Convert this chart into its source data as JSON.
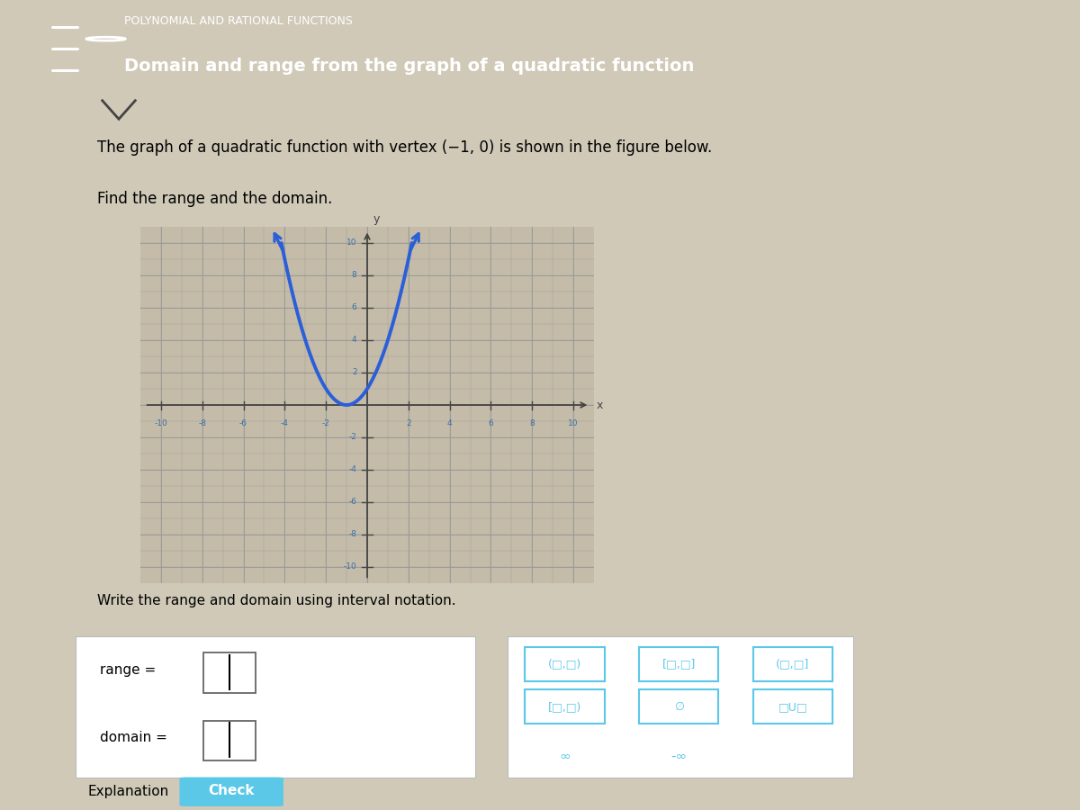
{
  "header_bg": "#2E5FA3",
  "header_text1": "POLYNOMIAL AND RATIONAL FUNCTIONS",
  "header_text2": "Domain and range from the graph of a quadratic function",
  "body_bg": "#D0C9B8",
  "intro_line1": "The graph of a quadratic function with vertex (−1, 0) is shown in the figure below.",
  "intro_line2": "Find the range and the domain.",
  "graph_bg": "#C4BCA8",
  "grid_color": "#999999",
  "axis_color": "#444444",
  "curve_color": "#2B5FD9",
  "curve_linewidth": 2.8,
  "vertex_x": -1,
  "vertex_y": 0,
  "xlim": [
    -11,
    11
  ],
  "ylim": [
    -11,
    11
  ],
  "xlabel": "x",
  "ylabel": "y",
  "write_text": "Write the range and domain using interval notation.",
  "range_label": "range =",
  "domain_label": "domain =",
  "btn_row1": [
    "(□,□)",
    "[□,□]",
    "(□,□]"
  ],
  "btn_row2": [
    "[□,□)",
    "∅",
    "□U□"
  ],
  "btn_row3": [
    "∞",
    "-∞"
  ],
  "button_color": "#5BC8E8",
  "check_button_color": "#5BC8E8",
  "explanation_text": "Explanation",
  "check_text": "Check"
}
